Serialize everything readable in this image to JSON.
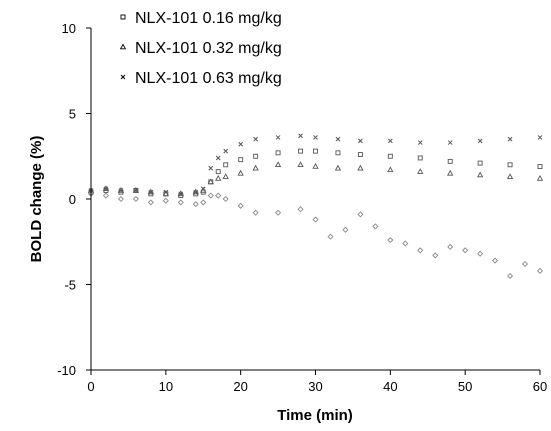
{
  "chart_data": {
    "type": "scatter",
    "xlabel": "Time (min)",
    "ylabel": "BOLD change (%)",
    "xlim": [
      0,
      60
    ],
    "ylim": [
      -10,
      10
    ],
    "x_ticks": [
      "0",
      "10",
      "20",
      "30",
      "40",
      "50",
      "60"
    ],
    "y_ticks": [
      "10",
      "5",
      "0",
      "-5",
      "-10"
    ],
    "legend_position": "top-left",
    "grid": false,
    "series": [
      {
        "name": "NLX-101 0.16 mg/kg",
        "marker": "square",
        "color": "#555555",
        "x": [
          0,
          2,
          4,
          6,
          8,
          10,
          12,
          14,
          15,
          16,
          17,
          18,
          20,
          22,
          25,
          28,
          30,
          33,
          36,
          40,
          44,
          48,
          52,
          56,
          60
        ],
        "y": [
          0.4,
          0.5,
          0.4,
          0.5,
          0.3,
          0.3,
          0.2,
          0.3,
          0.4,
          1.0,
          1.6,
          2.0,
          2.3,
          2.5,
          2.7,
          2.8,
          2.8,
          2.7,
          2.6,
          2.5,
          2.4,
          2.2,
          2.1,
          2.0,
          1.9
        ]
      },
      {
        "name": "NLX-101 0.32 mg/kg",
        "marker": "triangle",
        "color": "#555555",
        "x": [
          0,
          2,
          4,
          6,
          8,
          10,
          12,
          14,
          15,
          16,
          17,
          18,
          20,
          22,
          25,
          28,
          30,
          33,
          36,
          40,
          44,
          48,
          52,
          56,
          60
        ],
        "y": [
          0.5,
          0.6,
          0.5,
          0.5,
          0.4,
          0.3,
          0.3,
          0.4,
          0.5,
          1.0,
          1.2,
          1.3,
          1.5,
          1.8,
          2.0,
          2.0,
          1.9,
          1.8,
          1.8,
          1.7,
          1.6,
          1.5,
          1.4,
          1.3,
          1.2
        ]
      },
      {
        "name": "NLX-101 0.63 mg/kg",
        "marker": "cross",
        "color": "#555555",
        "x": [
          0,
          2,
          4,
          6,
          8,
          10,
          12,
          14,
          15,
          16,
          17,
          18,
          20,
          22,
          25,
          28,
          30,
          33,
          36,
          40,
          44,
          48,
          52,
          56,
          60
        ],
        "y": [
          0.5,
          0.6,
          0.5,
          0.5,
          0.4,
          0.4,
          0.3,
          0.4,
          0.6,
          1.8,
          2.4,
          2.8,
          3.2,
          3.5,
          3.6,
          3.7,
          3.6,
          3.5,
          3.4,
          3.4,
          3.3,
          3.3,
          3.4,
          3.5,
          3.6
        ]
      },
      {
        "name": "",
        "marker": "diamond",
        "color": "#888888",
        "x": [
          0,
          2,
          4,
          6,
          8,
          10,
          12,
          14,
          15,
          16,
          17,
          18,
          20,
          22,
          25,
          28,
          30,
          32,
          34,
          36,
          38,
          40,
          42,
          44,
          46,
          48,
          50,
          52,
          54,
          56,
          58,
          60
        ],
        "y": [
          0.3,
          0.2,
          0.0,
          0.0,
          -0.2,
          -0.1,
          -0.2,
          -0.3,
          -0.2,
          0.2,
          0.2,
          0.0,
          -0.4,
          -0.8,
          -0.8,
          -0.6,
          -1.2,
          -2.2,
          -1.8,
          -0.9,
          -1.6,
          -2.4,
          -2.6,
          -3.0,
          -3.3,
          -2.8,
          -3.0,
          -3.2,
          -3.6,
          -4.5,
          -3.8,
          -4.2
        ]
      }
    ]
  }
}
